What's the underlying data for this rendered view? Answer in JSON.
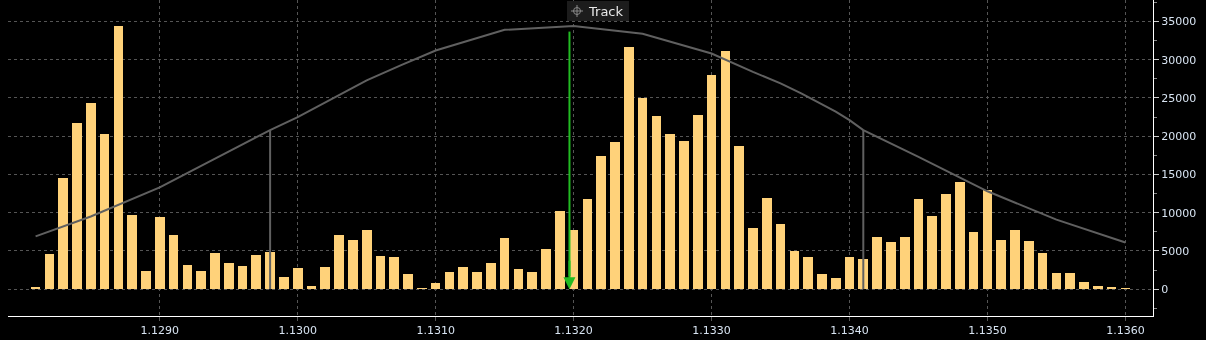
{
  "chart_data": {
    "type": "bar",
    "x": [
      1.1281,
      1.1282,
      1.1283,
      1.1284,
      1.1285,
      1.1286,
      1.1287,
      1.1288,
      1.1289,
      1.129,
      1.1291,
      1.1292,
      1.1293,
      1.1294,
      1.1295,
      1.1296,
      1.1297,
      1.1298,
      1.1299,
      1.13,
      1.1301,
      1.1302,
      1.1303,
      1.1304,
      1.1305,
      1.1306,
      1.1307,
      1.1308,
      1.1309,
      1.131,
      1.1311,
      1.1312,
      1.1313,
      1.1314,
      1.1315,
      1.1316,
      1.1317,
      1.1318,
      1.1319,
      1.132,
      1.1321,
      1.1322,
      1.1323,
      1.1324,
      1.1325,
      1.1326,
      1.1327,
      1.1328,
      1.1329,
      1.133,
      1.1331,
      1.1332,
      1.1333,
      1.1334,
      1.1335,
      1.1336,
      1.1337,
      1.1338,
      1.1339,
      1.134,
      1.1341,
      1.1342,
      1.1343,
      1.1344,
      1.1345,
      1.1346,
      1.1347,
      1.1348,
      1.1349,
      1.135,
      1.1351,
      1.1352,
      1.1353,
      1.1354,
      1.1355,
      1.1356,
      1.1357,
      1.1358,
      1.1359,
      1.136
    ],
    "series": [
      {
        "color": "#ffd27a",
        "values": [
          300,
          4600,
          14500,
          21700,
          24300,
          20300,
          34400,
          9700,
          2400,
          9400,
          7100,
          3200,
          2400,
          4700,
          3400,
          3100,
          4500,
          4900,
          1600,
          2800,
          400,
          2900,
          7100,
          6400,
          7800,
          4400,
          4200,
          2000,
          200,
          800,
          2300,
          2900,
          2300,
          3400,
          6700,
          2700,
          2300,
          5300,
          10200,
          7800,
          11800,
          17400,
          19200,
          31600,
          25000,
          22600,
          20300,
          19400,
          22800,
          28000,
          31100,
          18700,
          8000,
          11900,
          8500,
          5000,
          4200,
          2000,
          1500,
          4200,
          4000,
          6800,
          6200,
          6800,
          11800,
          9600,
          12500,
          14000,
          7500,
          13000,
          6400,
          7800,
          6300,
          4700,
          2100,
          2100,
          1000,
          400,
          300,
          100
        ]
      },
      {
        "type": "line",
        "color": "#606060",
        "x": [
          1.1281,
          1.1285,
          1.129,
          1.1298,
          1.13,
          1.1305,
          1.13075,
          1.131,
          1.1315,
          1.132,
          1.1325,
          1.133,
          1.1333,
          1.1335,
          1.13365,
          1.1339,
          1.134,
          1.1341,
          1.1345,
          1.135,
          1.1355,
          1.136
        ],
        "values": [
          6900,
          9500,
          13300,
          20800,
          22500,
          27300,
          29300,
          31200,
          33900,
          34400,
          33400,
          30800,
          28400,
          26900,
          25600,
          23200,
          22100,
          20800,
          17300,
          12800,
          9100,
          6100
        ]
      },
      {
        "type": "line",
        "color": "#606060",
        "x": [
          1.1298,
          1.1298
        ],
        "values": [
          0,
          20800
        ]
      },
      {
        "type": "line",
        "color": "#606060",
        "x": [
          1.1341,
          1.1341
        ],
        "values": [
          0,
          20800
        ]
      }
    ],
    "xlim": [
      1.1279,
      1.1362
    ],
    "xticks": [
      {
        "value": 1.129,
        "label": "1.1290"
      },
      {
        "value": 1.13,
        "label": "1.1300"
      },
      {
        "value": 1.131,
        "label": "1.1310"
      },
      {
        "value": 1.132,
        "label": "1.1320"
      },
      {
        "value": 1.133,
        "label": "1.1330"
      },
      {
        "value": 1.134,
        "label": "1.1340"
      },
      {
        "value": 1.135,
        "label": "1.1350"
      },
      {
        "value": 1.136,
        "label": "1.1360"
      }
    ],
    "ylim": [
      -3500,
      37800
    ],
    "yticks": [
      0,
      5000,
      10000,
      15000,
      20000,
      25000,
      30000,
      35000
    ],
    "ref_lines": [
      {
        "axis": "x",
        "value": 1.13197,
        "color": "#22bb22"
      }
    ],
    "annotations": [
      "Track"
    ],
    "grid": true,
    "line_style": "solid",
    "marker": "none"
  }
}
